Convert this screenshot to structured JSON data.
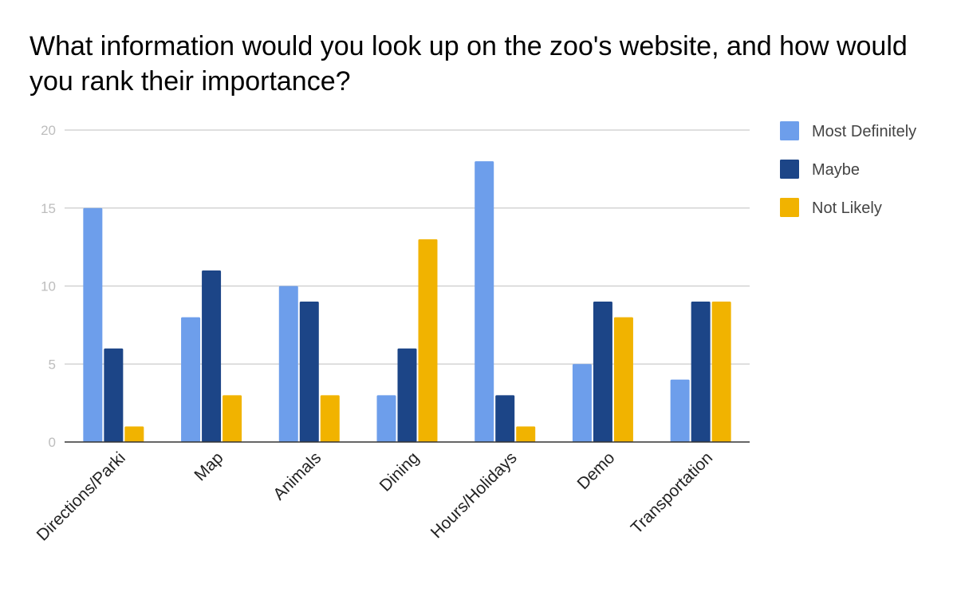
{
  "chart_data": {
    "type": "bar",
    "title": "What information would you look up on the zoo's website, and how would you rank their importance?",
    "categories": [
      "Directions/Parki",
      "Map",
      "Animals",
      "Dining",
      "Hours/Holidays",
      "Demo",
      "Transportation"
    ],
    "series": [
      {
        "name": "Most Definitely",
        "color": "#6d9eeb",
        "values": [
          15,
          8,
          10,
          3,
          18,
          5,
          4
        ]
      },
      {
        "name": "Maybe",
        "color": "#1c4587",
        "values": [
          6,
          11,
          9,
          6,
          3,
          9,
          9
        ]
      },
      {
        "name": "Not Likely",
        "color": "#f1b300",
        "values": [
          1,
          3,
          3,
          13,
          1,
          8,
          9
        ]
      }
    ],
    "yticks": [
      0,
      5,
      10,
      15,
      20
    ],
    "ylim": [
      0,
      20
    ],
    "grid": true,
    "legend_position": "right",
    "xlabel": "",
    "ylabel": ""
  }
}
